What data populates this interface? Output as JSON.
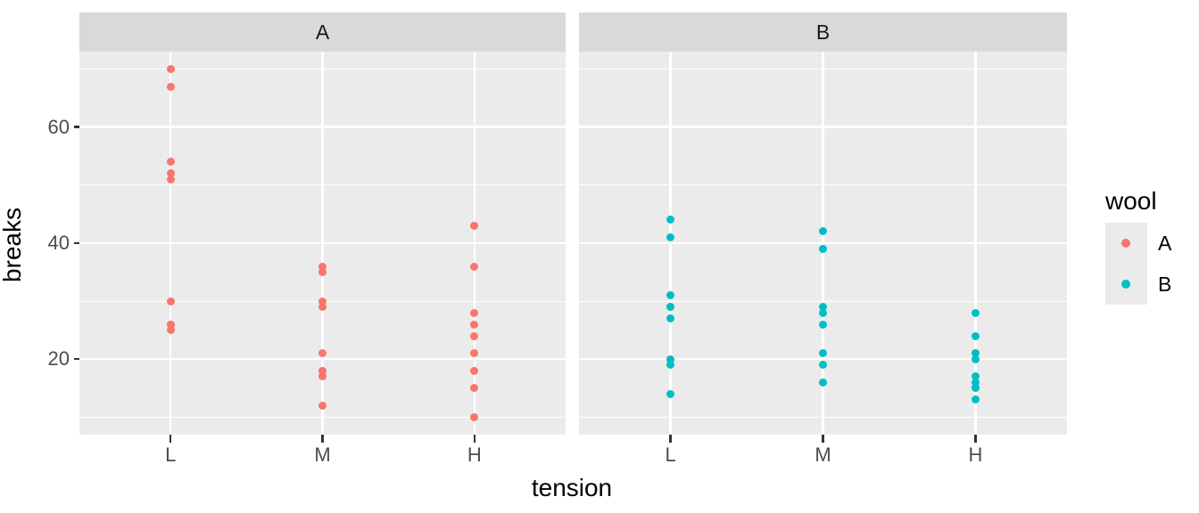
{
  "chart_data": {
    "type": "scatter",
    "xlabel": "tension",
    "ylabel": "breaks",
    "x_categories": [
      "L",
      "M",
      "H"
    ],
    "y_ticks": [
      20,
      40,
      60
    ],
    "y_minor_ticks": [
      10,
      30,
      50,
      70
    ],
    "ylim": [
      7,
      73
    ],
    "grid": "on",
    "facet_variable": "wool",
    "facets": [
      {
        "label": "A",
        "color": "#F8766D",
        "points": {
          "L": [
            26,
            30,
            54,
            25,
            70,
            52,
            51,
            26,
            67
          ],
          "M": [
            18,
            21,
            29,
            17,
            12,
            18,
            35,
            30,
            36
          ],
          "H": [
            36,
            21,
            24,
            18,
            10,
            43,
            28,
            15,
            26
          ]
        }
      },
      {
        "label": "B",
        "color": "#00BFC4",
        "points": {
          "L": [
            27,
            14,
            29,
            19,
            29,
            31,
            41,
            20,
            44
          ],
          "M": [
            42,
            26,
            19,
            16,
            39,
            28,
            21,
            39,
            29
          ],
          "H": [
            20,
            21,
            24,
            17,
            13,
            15,
            15,
            16,
            28
          ]
        }
      }
    ],
    "legend": {
      "title": "wool",
      "position": "right",
      "entries": [
        {
          "label": "A",
          "color": "#F8766D"
        },
        {
          "label": "B",
          "color": "#00BFC4"
        }
      ]
    },
    "colors": {
      "panel_background": "#EBEBEB",
      "strip_background": "#D9D9D9",
      "gridline": "#FFFFFF",
      "tick_mark": "#333333",
      "tick_text": "#4D4D4D",
      "title_text": "#000000"
    }
  }
}
